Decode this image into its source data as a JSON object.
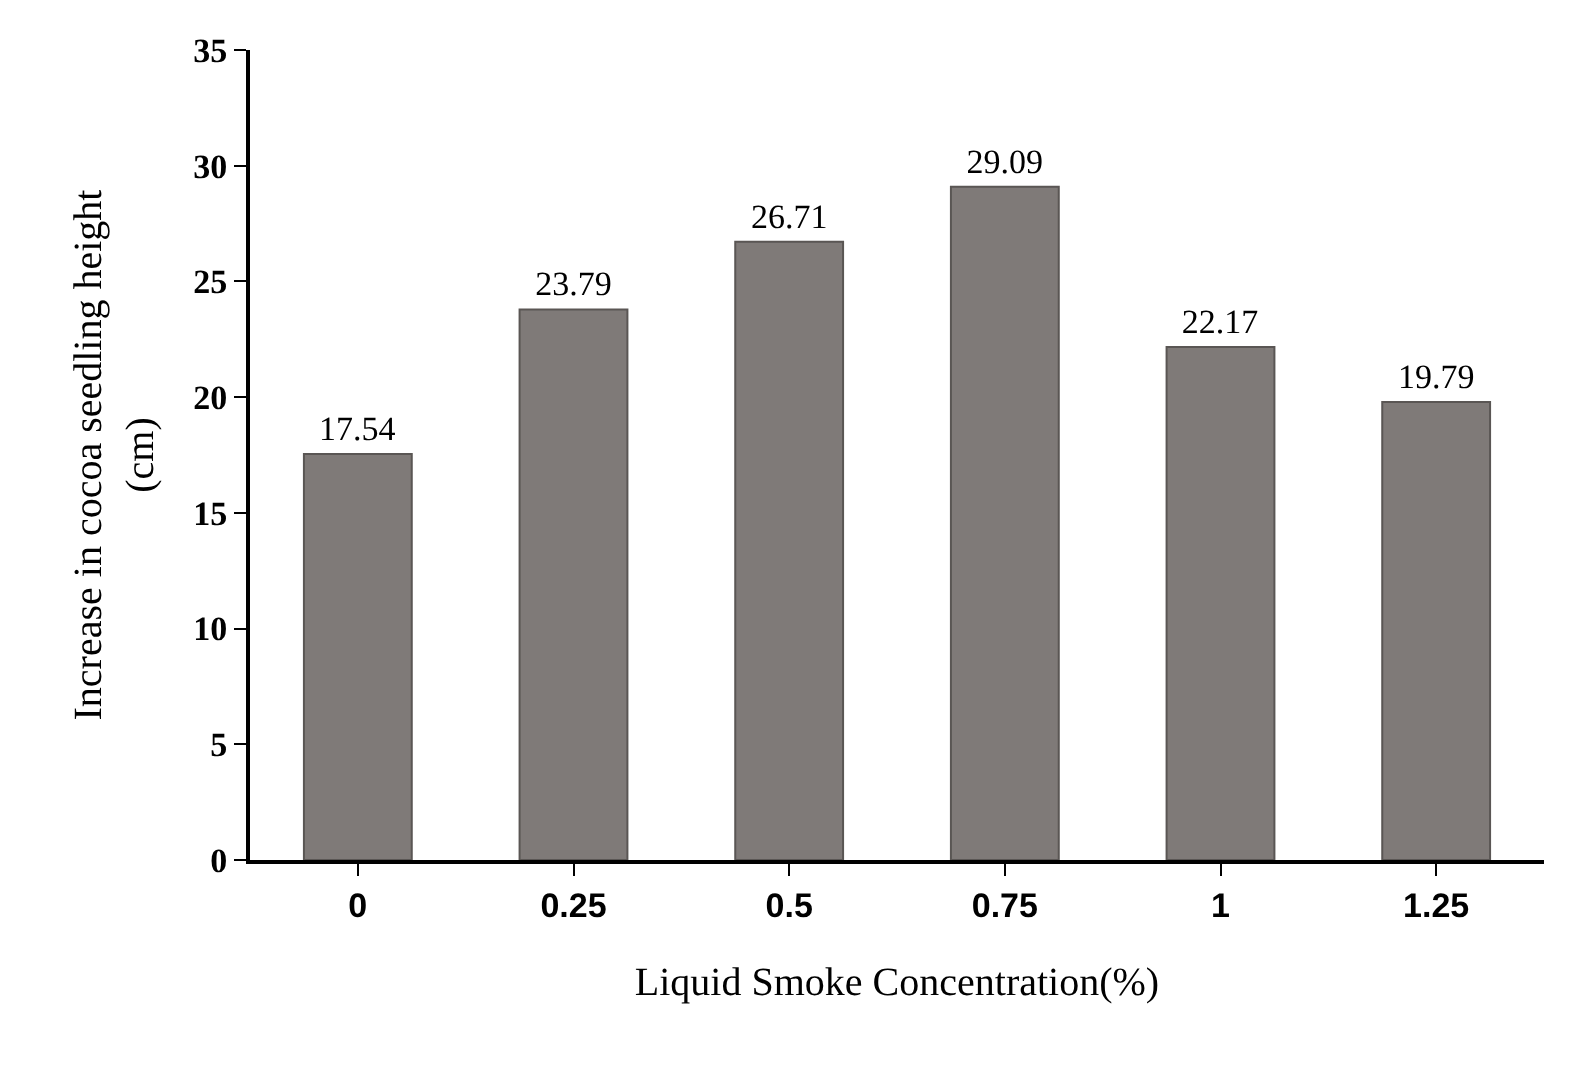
{
  "chart_data": {
    "type": "bar",
    "xlabel": "Liquid Smoke Concentration(%)",
    "ylabel": "Increase in cocoa seedling height\n(cm)",
    "categories": [
      "0",
      "0.25",
      "0.5",
      "0.75",
      "1",
      "1.25"
    ],
    "values": [
      17.54,
      23.79,
      26.71,
      29.09,
      22.17,
      19.79
    ],
    "color": "#7f7a78",
    "ylim": [
      0,
      35
    ],
    "yticks": [
      0,
      5,
      10,
      15,
      20,
      25,
      30,
      35
    ],
    "grid": false,
    "legend": false,
    "data_labels": true
  }
}
